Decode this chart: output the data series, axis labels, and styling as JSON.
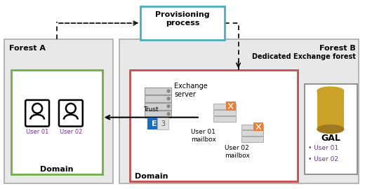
{
  "forest_a_label": "Forest A",
  "forest_b_label": "Forest B",
  "forest_b_sub": "Dedicated Exchange forest",
  "domain_a_label": "Domain",
  "domain_b_label": "Domain",
  "user01_label": "User 01",
  "user02_label": "User 02",
  "provisioning_label": "Provisioning\nprocess",
  "exchange_server_label": "Exchange\nserver",
  "gal_label": "GAL",
  "gal_items": [
    "User 01",
    "User 02"
  ],
  "user01_mailbox_label": "User 01\nmailbox",
  "user02_mailbox_label": "User 02\nmailbox",
  "trust_label": "Trust",
  "forest_bg": "#e8e8e8",
  "forest_border": "#aaaaaa",
  "domain_a_border": "#70ad47",
  "domain_b_border": "#c0504d",
  "prov_border": "#4bacc6",
  "gal_border": "#7f7f7f",
  "user_color": "#7030a0",
  "gal_item_color": "#7030a0",
  "exchange_blue": "#1e6bb8",
  "cylinder_color": "#c9a227",
  "cylinder_dark": "#a07820"
}
